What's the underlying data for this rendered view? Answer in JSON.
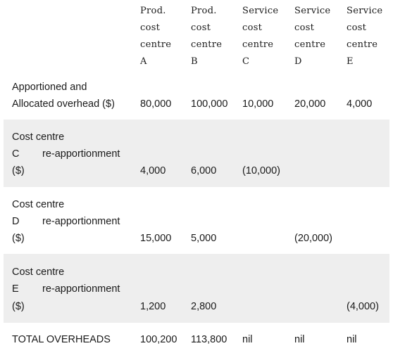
{
  "headers": [
    {
      "l1": "Prod.",
      "l2": "cost",
      "l3": "centre",
      "l4": "A"
    },
    {
      "l1": "Prod.",
      "l2": "cost",
      "l3": "centre",
      "l4": "B"
    },
    {
      "l1": "Service",
      "l2": "cost",
      "l3": "centre",
      "l4": "C"
    },
    {
      "l1": "Service",
      "l2": "cost",
      "l3": "centre",
      "l4": "D"
    },
    {
      "l1": "Service",
      "l2": "cost",
      "l3": "centre",
      "l4": "E"
    }
  ],
  "rows": {
    "apportioned": {
      "label1": "Apportioned and",
      "label2": "Allocated overhead ($)",
      "a": "80,000",
      "b": "100,000",
      "c": "10,000",
      "d": "20,000",
      "e": "4,000"
    },
    "reapp_c": {
      "label1": "Cost centre",
      "label2a": "C",
      "label2b": "re-apportionment",
      "label3": "($)",
      "a": "4,000",
      "b": "6,000",
      "c": "(10,000)"
    },
    "reapp_d": {
      "label1": "Cost centre",
      "label2a": "D",
      "label2b": "re-apportionment",
      "label3": "($)",
      "a": "15,000",
      "b": "5,000",
      "d": "(20,000)"
    },
    "reapp_e": {
      "label1": "Cost centre",
      "label2a": "E",
      "label2b": "re-apportionment",
      "label3": "($)",
      "a": "1,200",
      "b": "2,800",
      "e": "(4,000)"
    },
    "total": {
      "label": "TOTAL OVERHEADS",
      "a": "100,200",
      "b": "113,800",
      "c": "nil",
      "d": "nil",
      "e": "nil"
    }
  }
}
